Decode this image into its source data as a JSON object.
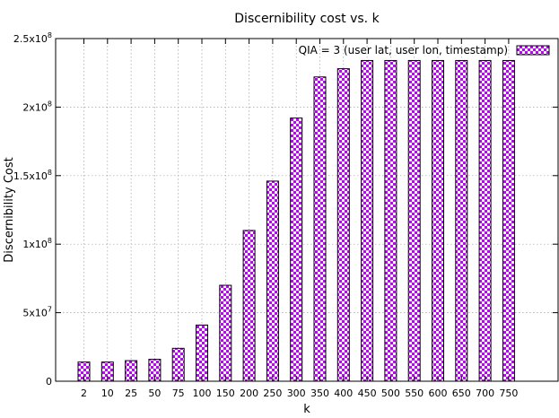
{
  "chart_data": {
    "type": "bar",
    "title": "Discernibility cost vs. k",
    "xlabel": "k",
    "ylabel": "Discernibility Cost",
    "ylim": [
      0,
      250000000
    ],
    "yticks": [
      {
        "value": 0,
        "base": "0",
        "exp": ""
      },
      {
        "value": 50000000,
        "base": "5x10",
        "exp": "7"
      },
      {
        "value": 100000000,
        "base": "1x10",
        "exp": "8"
      },
      {
        "value": 150000000,
        "base": "1.5x10",
        "exp": "8"
      },
      {
        "value": 200000000,
        "base": "2x10",
        "exp": "8"
      },
      {
        "value": 250000000,
        "base": "2.5x10",
        "exp": "8"
      }
    ],
    "categories": [
      "2",
      "10",
      "25",
      "50",
      "75",
      "100",
      "150",
      "200",
      "250",
      "300",
      "350",
      "400",
      "450",
      "500",
      "550",
      "600",
      "650",
      "700",
      "750"
    ],
    "series": [
      {
        "name": "QIA = 3 (user lat, user lon, timestamp)",
        "values": [
          14000000,
          14000000,
          15000000,
          16000000,
          24000000,
          41000000,
          70000000,
          110000000,
          146000000,
          192000000,
          222000000,
          228000000,
          234000000,
          234000000,
          234000000,
          234000000,
          234000000,
          234000000,
          234000000
        ]
      }
    ],
    "grid": true,
    "legend_position": "top-right",
    "colors": {
      "pattern": "#c000ff",
      "background": "#ffffff",
      "axis": "#000000"
    }
  }
}
